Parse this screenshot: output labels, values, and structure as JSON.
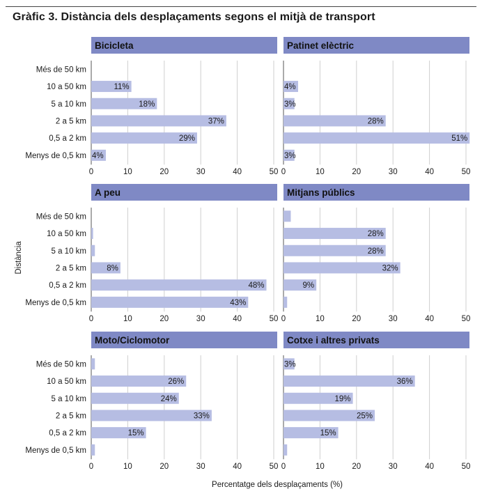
{
  "title": "Gràfic 3. Distància dels desplaçaments segons el mitjà de transport",
  "chart_data": [
    {
      "type": "bar",
      "orientation": "horizontal",
      "title": "Bicicleta",
      "categories": [
        "Més de 50 km",
        "10 a 50 km",
        "5 a 10 km",
        "2 a 5 km",
        "0,5 a 2 km",
        "Menys de 0,5 km"
      ],
      "values": [
        0,
        11,
        18,
        37,
        29,
        4
      ],
      "labels": [
        "",
        "11%",
        "18%",
        "37%",
        "29%",
        "4%"
      ],
      "xlim": [
        0,
        50
      ]
    },
    {
      "type": "bar",
      "orientation": "horizontal",
      "title": "Patinet elèctric",
      "categories": [
        "Més de 50 km",
        "10 a 50 km",
        "5 a 10 km",
        "2 a 5 km",
        "0,5 a 2 km",
        "Menys de 0,5 km"
      ],
      "values": [
        0,
        4,
        3,
        28,
        51,
        3
      ],
      "labels": [
        "",
        "4%",
        "3%",
        "28%",
        "51%",
        "3%"
      ],
      "xlim": [
        0,
        50
      ]
    },
    {
      "type": "bar",
      "orientation": "horizontal",
      "title": "A peu",
      "categories": [
        "Més de 50 km",
        "10 a 50 km",
        "5 a 10 km",
        "2 a 5 km",
        "0,5 a 2 km",
        "Menys de 0,5 km"
      ],
      "values": [
        0,
        0.5,
        1,
        8,
        48,
        43
      ],
      "labels": [
        "",
        "",
        "",
        "8%",
        "48%",
        "43%"
      ],
      "xlim": [
        0,
        50
      ]
    },
    {
      "type": "bar",
      "orientation": "horizontal",
      "title": "Mitjans públics",
      "categories": [
        "Més de 50 km",
        "10 a 50 km",
        "5 a 10 km",
        "2 a 5 km",
        "0,5 a 2 km",
        "Menys de 0,5 km"
      ],
      "values": [
        2,
        28,
        28,
        32,
        9,
        1
      ],
      "labels": [
        "",
        "28%",
        "28%",
        "32%",
        "9%",
        ""
      ],
      "xlim": [
        0,
        50
      ]
    },
    {
      "type": "bar",
      "orientation": "horizontal",
      "title": "Moto/Ciclomotor",
      "categories": [
        "Més de 50 km",
        "10 a 50 km",
        "5 a 10 km",
        "2 a 5 km",
        "0,5 a 2 km",
        "Menys de 0,5 km"
      ],
      "values": [
        1,
        26,
        24,
        33,
        15,
        1
      ],
      "labels": [
        "",
        "26%",
        "24%",
        "33%",
        "15%",
        ""
      ],
      "xlim": [
        0,
        50
      ]
    },
    {
      "type": "bar",
      "orientation": "horizontal",
      "title": "Cotxe i altres privats",
      "categories": [
        "Més de 50 km",
        "10 a 50 km",
        "5 a 10 km",
        "2 a 5 km",
        "0,5 a 2 km",
        "Menys de 0,5 km"
      ],
      "values": [
        3,
        36,
        19,
        25,
        15,
        1
      ],
      "labels": [
        "3%",
        "36%",
        "19%",
        "25%",
        "15%",
        ""
      ],
      "xlim": [
        0,
        50
      ]
    }
  ],
  "ticks": [
    0,
    10,
    20,
    30,
    40,
    50
  ],
  "ylabel": "Distància",
  "xlabel": "Percentatge dels desplaçaments (%)",
  "colors": {
    "bar": "#b6bde3",
    "header": "#7f89c5",
    "grid": "#cfcfcf",
    "axis": "#555555",
    "text": "#1a1a1a"
  }
}
